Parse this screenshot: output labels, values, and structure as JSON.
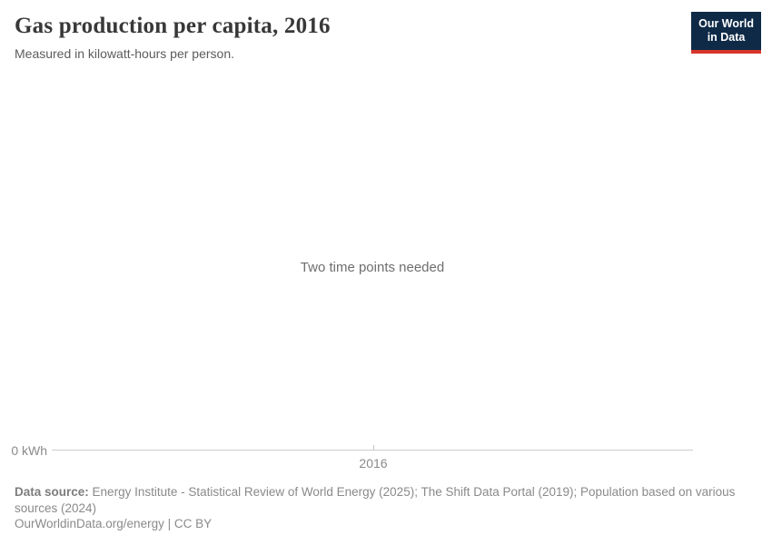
{
  "header": {
    "title": "Gas production per capita, 2016",
    "subtitle": "Measured in kilowatt-hours per person.",
    "logo_line1": "Our World",
    "logo_line2": "in Data"
  },
  "chart": {
    "empty_message": "Two time points needed",
    "y_axis_zero_label": "0 kWh",
    "x_axis_tick_label": "2016"
  },
  "footer": {
    "source_label": "Data source:",
    "source_text": "Energy Institute - Statistical Review of World Energy (2025); The Shift Data Portal (2019); Population based on various sources (2024)",
    "attribution": "OurWorldinData.org/energy | CC BY"
  },
  "colors": {
    "logo_background": "#0e2a47",
    "logo_accent_red": "#d7352c",
    "axis_line": "#cccccc",
    "axis_label_text": "#8a8a8a",
    "title_text": "#383838",
    "subtitle_text": "#5c5c5c",
    "message_text": "#6e6e6e",
    "footer_text": "#8a8a8a"
  },
  "chart_data": {
    "type": "line",
    "title": "Gas production per capita, 2016",
    "subtitle": "Measured in kilowatt-hours per person.",
    "xlabel": "",
    "ylabel": "kWh",
    "x_ticks": [
      "2016"
    ],
    "y_ticks": [
      "0 kWh"
    ],
    "x_range": [
      2016,
      2016
    ],
    "y_min": 0,
    "series": [],
    "annotations": [
      "Two time points needed"
    ],
    "grid": false,
    "legend_position": "none"
  }
}
